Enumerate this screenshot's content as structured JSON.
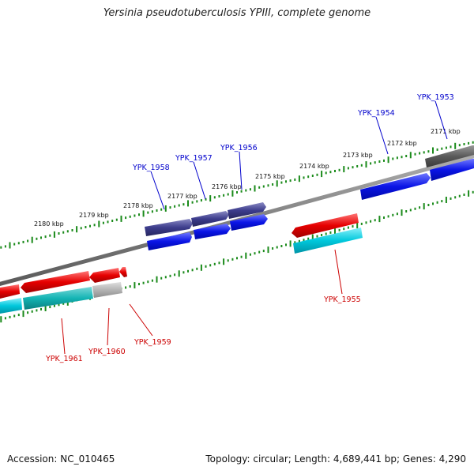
{
  "title": "Yersinia pseudotuberculosis YPIII, complete genome",
  "footer": {
    "accession": "Accession: NC_010465",
    "stats": "Topology: circular; Length: 4,689,441 bp; Genes: 4,290"
  },
  "colors": {
    "backbone": "#808080",
    "ruler_ticks": "#1a8a1a",
    "forward_cds": "#0a14e6",
    "forward_gene": "#3c3c8c",
    "reverse_cds": "#00c8dc",
    "reverse_gene": "#e60000",
    "pseudo": "#b4b4b4",
    "label_forward": "#0000cc",
    "label_reverse": "#cc0000"
  },
  "ruler_labels": [
    "2171 kbp",
    "2172 kbp",
    "2173 kbp",
    "2174 kbp",
    "2175 kbp",
    "2176 kbp",
    "2177 kbp",
    "2178 kbp",
    "2179 kbp",
    "2180 kbp"
  ],
  "genes_forward": [
    "YPK_1953",
    "YPK_1954",
    "YPK_1956",
    "YPK_1957",
    "YPK_1958"
  ],
  "genes_reverse": [
    "YPK_1955",
    "YPK_1959",
    "YPK_1960",
    "YPK_1961"
  ]
}
